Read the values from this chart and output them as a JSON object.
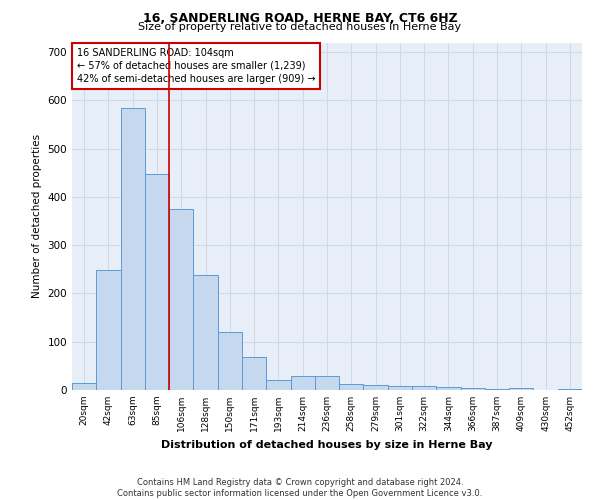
{
  "title": "16, SANDERLING ROAD, HERNE BAY, CT6 6HZ",
  "subtitle": "Size of property relative to detached houses in Herne Bay",
  "xlabel": "Distribution of detached houses by size in Herne Bay",
  "ylabel": "Number of detached properties",
  "footer_line1": "Contains HM Land Registry data © Crown copyright and database right 2024.",
  "footer_line2": "Contains public sector information licensed under the Open Government Licence v3.0.",
  "categories": [
    "20sqm",
    "42sqm",
    "63sqm",
    "85sqm",
    "106sqm",
    "128sqm",
    "150sqm",
    "171sqm",
    "193sqm",
    "214sqm",
    "236sqm",
    "258sqm",
    "279sqm",
    "301sqm",
    "322sqm",
    "344sqm",
    "366sqm",
    "387sqm",
    "409sqm",
    "430sqm",
    "452sqm"
  ],
  "values": [
    15,
    248,
    585,
    448,
    375,
    238,
    120,
    68,
    20,
    28,
    30,
    12,
    10,
    8,
    8,
    7,
    5,
    3,
    5,
    1,
    2
  ],
  "bar_color": "#c5d8ed",
  "bar_edge_color": "#5b9bd5",
  "grid_color": "#d0d8e8",
  "background_color": "#e8eef8",
  "red_line_color": "#cc0000",
  "red_line_bin_index": 4,
  "annotation_text_line1": "16 SANDERLING ROAD: 104sqm",
  "annotation_text_line2": "← 57% of detached houses are smaller (1,239)",
  "annotation_text_line3": "42% of semi-detached houses are larger (909) →",
  "annotation_box_facecolor": "#ffffff",
  "annotation_box_edgecolor": "#cc0000",
  "ylim": [
    0,
    720
  ],
  "yticks": [
    0,
    100,
    200,
    300,
    400,
    500,
    600,
    700
  ],
  "title_fontsize": 9,
  "subtitle_fontsize": 8,
  "xlabel_fontsize": 8,
  "ylabel_fontsize": 7.5,
  "xtick_fontsize": 6.5,
  "ytick_fontsize": 7.5,
  "annotation_fontsize": 7,
  "footer_fontsize": 6
}
